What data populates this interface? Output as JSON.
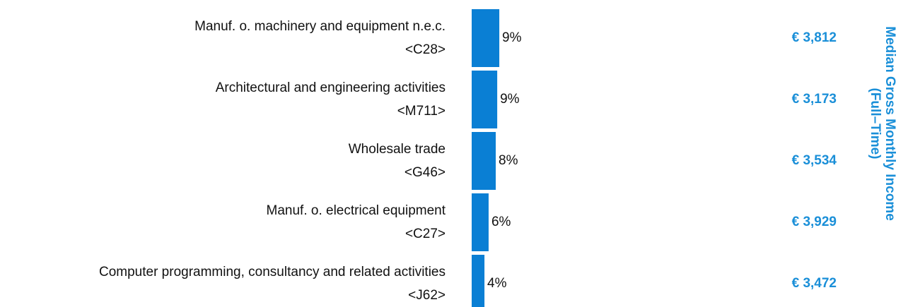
{
  "chart_data": {
    "type": "bar",
    "categories": [
      "Manuf. o. machinery and equipment n.e.c.",
      "Architectural and engineering activities",
      "Wholesale trade",
      "Manuf. o. electrical equipment",
      "Computer programming, consultancy and related activities"
    ],
    "codes": [
      "<C28>",
      "<M711>",
      "<G46>",
      "<C27>",
      "<J62>"
    ],
    "values": [
      9.3,
      8.6,
      8.1,
      5.7,
      4.3
    ],
    "value_labels": [
      "9%",
      "9%",
      "8%",
      "6%",
      "4%"
    ],
    "color": "#0a7fd4",
    "income": [
      3812,
      3173,
      3534,
      3929,
      3472
    ],
    "income_labels": [
      "€ 3,812",
      "€ 3,173",
      "€ 3,534",
      "€ 3,929",
      "€ 3,472"
    ],
    "income_color": "#1a8fd8",
    "income_axis_label": [
      "Median Gross Monthly Income",
      "(Full–Time)"
    ]
  }
}
